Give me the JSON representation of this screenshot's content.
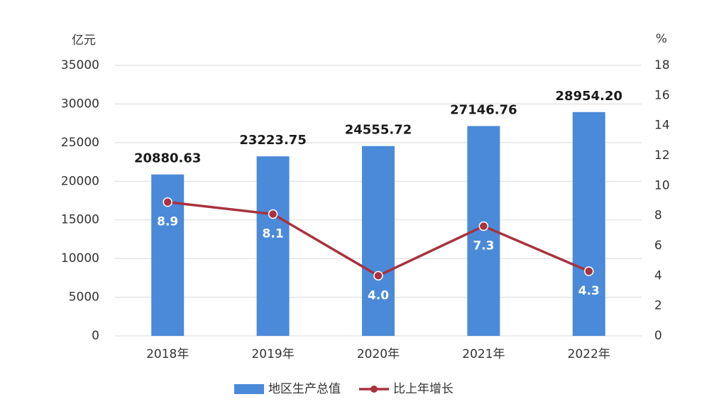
{
  "chart_data": {
    "type": "combo",
    "y_label": "亿元",
    "y2_label": "%",
    "categories": [
      "2018年",
      "2019年",
      "2020年",
      "2021年",
      "2022年"
    ],
    "series": [
      {
        "name": "地区生产总值",
        "type": "bar",
        "color": "#4a8ad9",
        "values": [
          20880.63,
          23223.75,
          24555.72,
          27146.76,
          28954.2
        ],
        "value_labels": [
          "20880.63",
          "23223.75",
          "24555.72",
          "27146.76",
          "28954.20"
        ]
      },
      {
        "name": "比上年增长",
        "type": "line",
        "axis": "y2",
        "color": "#a8323e",
        "values": [
          8.9,
          8.1,
          4.0,
          7.3,
          4.3
        ],
        "value_labels": [
          "8.9",
          "8.1",
          "4.0",
          "7.3",
          "4.3"
        ]
      }
    ],
    "ylim": [
      0,
      35000
    ],
    "yticks": [
      0,
      5000,
      10000,
      15000,
      20000,
      25000,
      30000,
      35000
    ],
    "y2lim": [
      0,
      18
    ],
    "y2ticks": [
      0,
      2,
      4,
      6,
      8,
      10,
      12,
      14,
      16,
      18
    ],
    "grid": true
  }
}
